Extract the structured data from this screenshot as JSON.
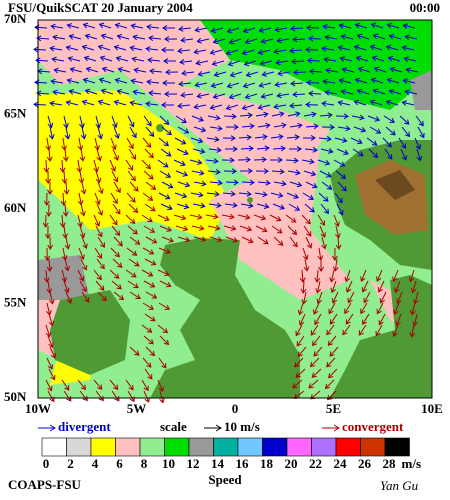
{
  "header": {
    "title": "FSU/QuikSCAT  20 January 2004",
    "time": "00:00"
  },
  "map": {
    "lat_labels": [
      "70N",
      "65N",
      "60N",
      "55N",
      "50N"
    ],
    "lon_labels": [
      "10W",
      "5W",
      "0",
      "5E",
      "10E"
    ]
  },
  "legend": {
    "divergent": "divergent",
    "scale": "scale",
    "scale_value": "10 m/s",
    "convergent": "convergent"
  },
  "colorbar": {
    "labels": [
      0,
      2,
      4,
      6,
      8,
      10,
      12,
      14,
      16,
      18,
      20,
      22,
      24,
      26,
      28
    ],
    "unit": "m/s",
    "title": "Speed",
    "colors": [
      "#ffffff",
      "#d8d8d8",
      "#ffff00",
      "#ffc0c0",
      "#90ee90",
      "#00dd00",
      "#999999",
      "#00b0a0",
      "#70c8ff",
      "#0000cc",
      "#ff66ff",
      "#b070ff",
      "#ff0000",
      "#cc3300",
      "#000000"
    ]
  },
  "footer": {
    "left": "COAPS-FSU",
    "right": "Yan Gu"
  }
}
